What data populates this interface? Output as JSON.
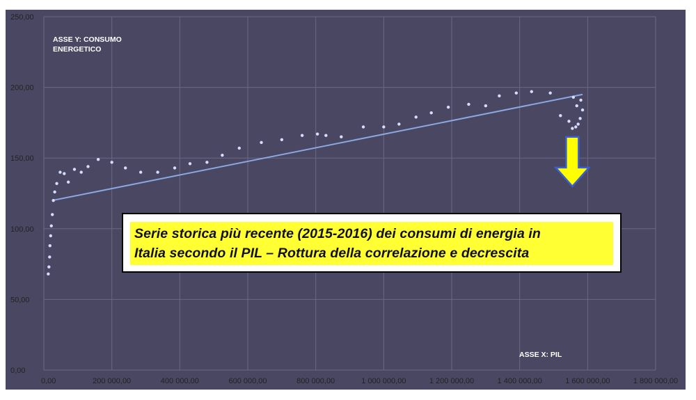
{
  "chart_data": {
    "type": "scatter",
    "title": "",
    "xlabel": "ASSE X:  PIL",
    "ylabel_lines": [
      "ASSE Y: CONSUMO",
      "ENERGETICO"
    ],
    "xlim": [
      0,
      1800000
    ],
    "ylim": [
      0,
      250
    ],
    "x_ticks": [
      0,
      200000,
      400000,
      600000,
      800000,
      1000000,
      1200000,
      1400000,
      1600000,
      1800000
    ],
    "x_tick_labels": [
      "0,00",
      "200 000,00",
      "400 000,00",
      "600 000,00",
      "800 000,00",
      "1 000 000,00",
      "1 200 000,00",
      "1 400 000,00",
      "1 600 000,00",
      "1 800 000,00"
    ],
    "y_ticks": [
      0,
      50,
      100,
      150,
      200,
      250
    ],
    "y_tick_labels": [
      "0,00",
      "50,00",
      "100,00",
      "150,00",
      "200,00",
      "250,00"
    ],
    "grid": true,
    "points": [
      [
        13000,
        68
      ],
      [
        15000,
        73
      ],
      [
        17000,
        80
      ],
      [
        18000,
        88
      ],
      [
        20000,
        95
      ],
      [
        22000,
        102
      ],
      [
        25000,
        110
      ],
      [
        28000,
        120
      ],
      [
        32000,
        126
      ],
      [
        38000,
        132
      ],
      [
        48000,
        140
      ],
      [
        60000,
        139
      ],
      [
        72000,
        133
      ],
      [
        90000,
        142
      ],
      [
        110000,
        140
      ],
      [
        130000,
        144
      ],
      [
        160000,
        149
      ],
      [
        200000,
        147
      ],
      [
        240000,
        143
      ],
      [
        285000,
        140
      ],
      [
        335000,
        140
      ],
      [
        385000,
        143
      ],
      [
        430000,
        146
      ],
      [
        480000,
        147
      ],
      [
        525000,
        152
      ],
      [
        575000,
        157
      ],
      [
        640000,
        161
      ],
      [
        700000,
        163
      ],
      [
        760000,
        166
      ],
      [
        805000,
        167
      ],
      [
        830000,
        166
      ],
      [
        875000,
        165
      ],
      [
        940000,
        172
      ],
      [
        1000000,
        172
      ],
      [
        1045000,
        174
      ],
      [
        1095000,
        179
      ],
      [
        1140000,
        182
      ],
      [
        1190000,
        186
      ],
      [
        1250000,
        188
      ],
      [
        1300000,
        187
      ],
      [
        1340000,
        194
      ],
      [
        1390000,
        196
      ],
      [
        1435000,
        197
      ],
      [
        1490000,
        196
      ],
      [
        1520000,
        180
      ],
      [
        1545000,
        176
      ],
      [
        1555000,
        171
      ],
      [
        1565000,
        172
      ],
      [
        1572000,
        174
      ],
      [
        1578000,
        178
      ],
      [
        1585000,
        184
      ],
      [
        1580000,
        191
      ],
      [
        1568000,
        187
      ],
      [
        1558000,
        193
      ]
    ],
    "trendline": {
      "from": [
        25000,
        120
      ],
      "to": [
        1585000,
        195
      ]
    },
    "annotations": {
      "callout_lines": [
        "Serie storica più recente (2015-2016) dei consumi  di energia in",
        "Italia secondo il PIL – Rottura della correlazione e decrescita"
      ],
      "arrow": {
        "x": 1555000,
        "y_top": 165,
        "y_bottom": 130,
        "direction": "down"
      }
    },
    "colors": {
      "plot_background": "#4a4762",
      "grid": "#6b6884",
      "points": "#d6dcff",
      "trendline": "#8ca8e0",
      "arrow_fill": "#ffff00",
      "arrow_stroke": "#3a5fd0",
      "callout_fill": "#ffff33"
    }
  }
}
